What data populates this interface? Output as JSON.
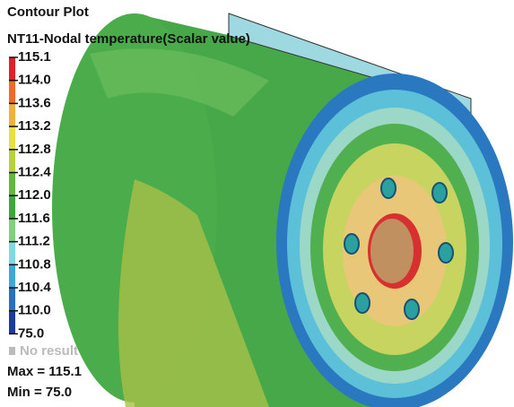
{
  "header": {
    "title": "Contour Plot",
    "subtitle": "NT11-Nodal temperature(Scalar value)"
  },
  "legend": {
    "labels": [
      "115.1",
      "114.0",
      "113.6",
      "113.2",
      "112.8",
      "112.4",
      "112.0",
      "111.6",
      "111.2",
      "110.8",
      "110.4",
      "110.0",
      "75.0"
    ],
    "colors": [
      "#e0202a",
      "#f06a28",
      "#f0b040",
      "#e8e040",
      "#b8d040",
      "#60b840",
      "#3ca83c",
      "#80d080",
      "#80d8e0",
      "#40a8d8",
      "#2870c0",
      "#1c3c9c"
    ],
    "no_result": "No result"
  },
  "stats": {
    "max": "Max = 115.1",
    "min": "Min = 75.0"
  }
}
